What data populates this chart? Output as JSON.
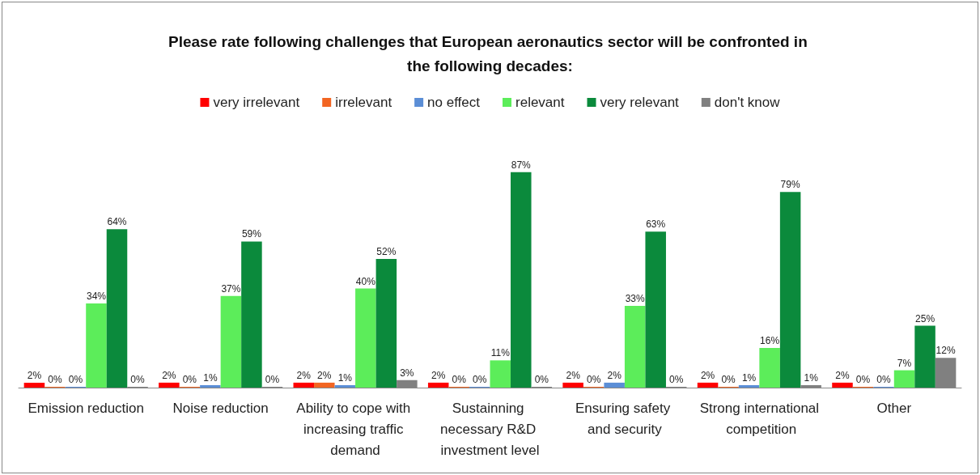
{
  "chart_data": {
    "type": "bar",
    "title": "Please rate following challenges that European aeronautics sector will be confronted in the following decades:",
    "categories": [
      "Emission reduction",
      "Noise reduction",
      "Ability to cope with increasing traffic demand",
      "Sustainning necessary R&D investment level",
      "Ensuring safety and security",
      "Strong international competition",
      "Other"
    ],
    "series": [
      {
        "name": "very irrelevant",
        "color": "#ff0000",
        "values": [
          2,
          2,
          2,
          2,
          2,
          2,
          2
        ],
        "value_labels": [
          "2%",
          "2%",
          "2%",
          "2%",
          "2%",
          "2%",
          "2%"
        ]
      },
      {
        "name": "irrelevant",
        "color": "#f26522",
        "values": [
          0,
          0,
          2,
          0,
          0,
          0,
          0
        ],
        "value_labels": [
          "0%",
          "0%",
          "2%",
          "0%",
          "0%",
          "0%",
          "0%"
        ]
      },
      {
        "name": "no effect",
        "color": "#5b8ed6",
        "values": [
          0,
          1,
          1,
          0,
          2,
          1,
          0
        ],
        "value_labels": [
          "0%",
          "1%",
          "1%",
          "0%",
          "2%",
          "1%",
          "0%"
        ]
      },
      {
        "name": "relevant",
        "color": "#5ced5a",
        "values": [
          34,
          37,
          40,
          11,
          33,
          16,
          7
        ],
        "value_labels": [
          "34%",
          "37%",
          "40%",
          "11%",
          "33%",
          "16%",
          "7%"
        ]
      },
      {
        "name": "very relevant",
        "color": "#0b8a3c",
        "values": [
          64,
          59,
          52,
          87,
          63,
          79,
          25
        ],
        "value_labels": [
          "64%",
          "59%",
          "52%",
          "87%",
          "63%",
          "79%",
          "25%"
        ]
      },
      {
        "name": "don't know",
        "color": "#808080",
        "values": [
          0,
          0,
          3,
          0,
          0,
          1,
          12
        ],
        "value_labels": [
          "0%",
          "0%",
          "3%",
          "0%",
          "0%",
          "1%",
          "12%"
        ]
      }
    ],
    "legend": "top",
    "grid": false,
    "tick_labels": "x"
  }
}
